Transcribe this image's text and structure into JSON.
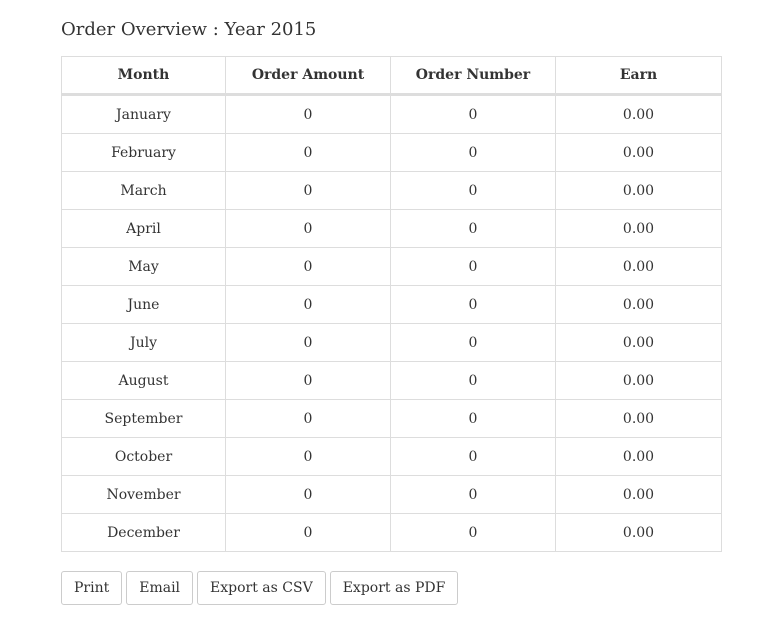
{
  "page": {
    "title": "Order Overview : Year 2015"
  },
  "table": {
    "headers": [
      "Month",
      "Order Amount",
      "Order Number",
      "Earn"
    ],
    "rows": [
      {
        "month": "January",
        "order_amount": "0",
        "order_number": "0",
        "earn": "0.00"
      },
      {
        "month": "February",
        "order_amount": "0",
        "order_number": "0",
        "earn": "0.00"
      },
      {
        "month": "March",
        "order_amount": "0",
        "order_number": "0",
        "earn": "0.00"
      },
      {
        "month": "April",
        "order_amount": "0",
        "order_number": "0",
        "earn": "0.00"
      },
      {
        "month": "May",
        "order_amount": "0",
        "order_number": "0",
        "earn": "0.00"
      },
      {
        "month": "June",
        "order_amount": "0",
        "order_number": "0",
        "earn": "0.00"
      },
      {
        "month": "July",
        "order_amount": "0",
        "order_number": "0",
        "earn": "0.00"
      },
      {
        "month": "August",
        "order_amount": "0",
        "order_number": "0",
        "earn": "0.00"
      },
      {
        "month": "September",
        "order_amount": "0",
        "order_number": "0",
        "earn": "0.00"
      },
      {
        "month": "October",
        "order_amount": "0",
        "order_number": "0",
        "earn": "0.00"
      },
      {
        "month": "November",
        "order_amount": "0",
        "order_number": "0",
        "earn": "0.00"
      },
      {
        "month": "December",
        "order_amount": "0",
        "order_number": "0",
        "earn": "0.00"
      }
    ]
  },
  "actions": {
    "print_label": "Print",
    "email_label": "Email",
    "export_csv_label": "Export as CSV",
    "export_pdf_label": "Export as PDF"
  }
}
